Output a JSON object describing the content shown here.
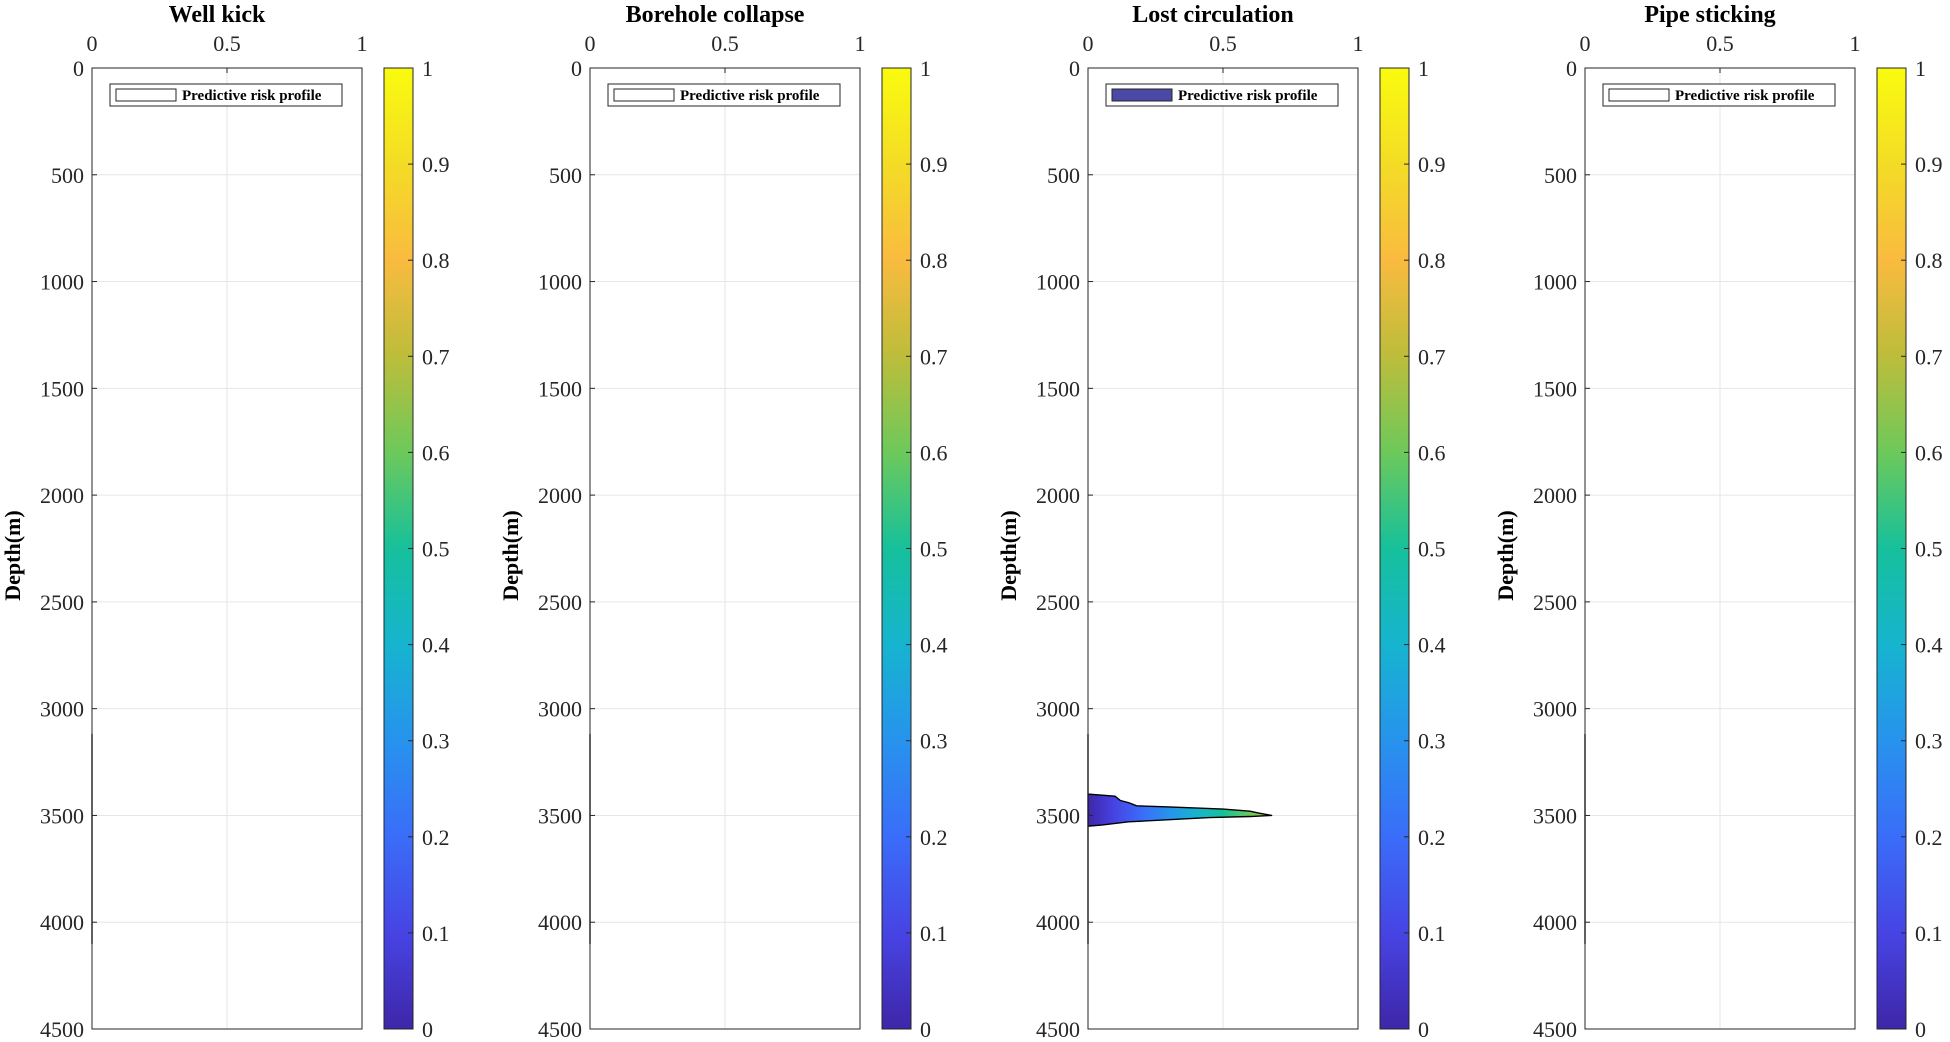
{
  "chart_data": [
    {
      "type": "area",
      "title": "Well kick",
      "ylabel": "Depth(m)",
      "xlim": [
        0,
        1
      ],
      "ylim": [
        0,
        4500
      ],
      "xticks": [
        "0",
        "0.5",
        "1"
      ],
      "yticks": [
        "0",
        "500",
        "1000",
        "1500",
        "2000",
        "2500",
        "3000",
        "3500",
        "4000",
        "4500"
      ],
      "colorbar_ticks": [
        "0",
        "0.1",
        "0.2",
        "0.3",
        "0.4",
        "0.5",
        "0.6",
        "0.7",
        "0.8",
        "0.9",
        "1"
      ],
      "legend": "Predictive risk profile",
      "legend_filled": false,
      "profile": [
        {
          "depth": 3120,
          "risk": 0.0
        },
        {
          "depth": 4100,
          "risk": 0.0
        }
      ]
    },
    {
      "type": "area",
      "title": "Borehole collapse",
      "ylabel": "Depth(m)",
      "xlim": [
        0,
        1
      ],
      "ylim": [
        0,
        4500
      ],
      "xticks": [
        "0",
        "0.5",
        "1"
      ],
      "yticks": [
        "0",
        "500",
        "1000",
        "1500",
        "2000",
        "2500",
        "3000",
        "3500",
        "4000",
        "4500"
      ],
      "colorbar_ticks": [
        "0",
        "0.1",
        "0.2",
        "0.3",
        "0.4",
        "0.5",
        "0.6",
        "0.7",
        "0.8",
        "0.9",
        "1"
      ],
      "legend": "Predictive risk profile",
      "legend_filled": false,
      "profile": [
        {
          "depth": 3120,
          "risk": 0.0
        },
        {
          "depth": 4100,
          "risk": 0.0
        }
      ]
    },
    {
      "type": "area",
      "title": "Lost circulation",
      "ylabel": "Depth(m)",
      "xlim": [
        0,
        1
      ],
      "ylim": [
        0,
        4500
      ],
      "xticks": [
        "0",
        "0.5",
        "1"
      ],
      "yticks": [
        "0",
        "500",
        "1000",
        "1500",
        "2000",
        "2500",
        "3000",
        "3500",
        "4000",
        "4500"
      ],
      "colorbar_ticks": [
        "0",
        "0.1",
        "0.2",
        "0.3",
        "0.4",
        "0.5",
        "0.6",
        "0.7",
        "0.8",
        "0.9",
        "1"
      ],
      "legend": "Predictive risk profile",
      "legend_filled": true,
      "profile": [
        {
          "depth": 3120,
          "risk": 0.0
        },
        {
          "depth": 3400,
          "risk": 0.0
        },
        {
          "depth": 3410,
          "risk": 0.1
        },
        {
          "depth": 3430,
          "risk": 0.12
        },
        {
          "depth": 3440,
          "risk": 0.15
        },
        {
          "depth": 3455,
          "risk": 0.18
        },
        {
          "depth": 3460,
          "risk": 0.3
        },
        {
          "depth": 3470,
          "risk": 0.5
        },
        {
          "depth": 3480,
          "risk": 0.6
        },
        {
          "depth": 3488,
          "risk": 0.63
        },
        {
          "depth": 3495,
          "risk": 0.66
        },
        {
          "depth": 3500,
          "risk": 0.68
        },
        {
          "depth": 3505,
          "risk": 0.6
        },
        {
          "depth": 3510,
          "risk": 0.45
        },
        {
          "depth": 3520,
          "risk": 0.3
        },
        {
          "depth": 3530,
          "risk": 0.15
        },
        {
          "depth": 3545,
          "risk": 0.05
        },
        {
          "depth": 3550,
          "risk": 0.0
        },
        {
          "depth": 4100,
          "risk": 0.0
        }
      ]
    },
    {
      "type": "area",
      "title": "Pipe sticking",
      "ylabel": "Depth(m)",
      "xlim": [
        0,
        1
      ],
      "ylim": [
        0,
        4500
      ],
      "xticks": [
        "0",
        "0.5",
        "1"
      ],
      "yticks": [
        "0",
        "500",
        "1000",
        "1500",
        "2000",
        "2500",
        "3000",
        "3500",
        "4000",
        "4500"
      ],
      "colorbar_ticks": [
        "0",
        "0.1",
        "0.2",
        "0.3",
        "0.4",
        "0.5",
        "0.6",
        "0.7",
        "0.8",
        "0.9",
        "1"
      ],
      "legend": "Predictive risk profile",
      "legend_filled": false,
      "profile": [
        {
          "depth": 3120,
          "risk": 0.0
        },
        {
          "depth": 4100,
          "risk": 0.0
        }
      ]
    }
  ],
  "colormap": [
    "#3e26a8",
    "#4744e4",
    "#3a6df9",
    "#2793ed",
    "#16b4cf",
    "#16c09b",
    "#6dc95b",
    "#bdbd3b",
    "#f9bb3f",
    "#f4dc26",
    "#f9fb0e"
  ]
}
